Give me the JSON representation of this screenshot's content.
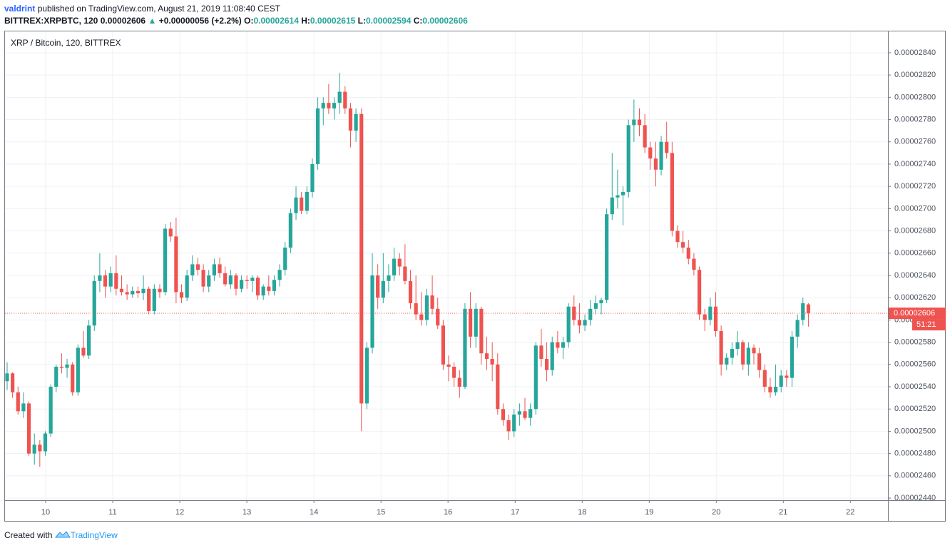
{
  "header": {
    "author": "valdrint",
    "published": "published on TradingView.com, August 21, 2019 11:08:40 CEST",
    "symbol": "BITTREX:XRPBTC, 120",
    "change": "+0.00000056 (+2.2%)",
    "o_label": "O:",
    "h_label": "H:",
    "l_label": "L:",
    "c_label": "C:"
  },
  "footer": {
    "text": "Created with",
    "brand": "TradingView"
  },
  "chart_data": {
    "type": "candlestick",
    "title": "XRP / Bitcoin, 120, BITTREX",
    "up_color": "#26a69a",
    "down_color": "#ef5350",
    "grid": true,
    "countdown": "51:21",
    "open": [
      2.545e-05,
      2.552e-05,
      2.535e-05,
      2.518e-05,
      2.525e-05,
      2.48e-05,
      2.488e-05,
      2.482e-05,
      2.498e-05,
      2.54e-05,
      2.558e-05,
      2.557e-05,
      2.56e-05,
      2.535e-05,
      2.575e-05,
      2.568e-05,
      2.595e-05,
      2.635e-05,
      2.64e-05,
      2.63e-05,
      2.642e-05,
      2.628e-05,
      2.625e-05,
      2.623e-05,
      2.626e-05,
      2.624e-05,
      2.628e-05,
      2.608e-05,
      2.628e-05,
      2.625e-05,
      2.682e-05,
      2.675e-05,
      2.625e-05,
      2.62e-05,
      2.64e-05,
      2.65e-05,
      2.645e-05,
      2.63e-05,
      2.64e-05,
      2.65e-05,
      2.642e-05,
      2.632e-05,
      2.64e-05,
      2.628e-05,
      2.636e-05,
      2.635e-05,
      2.638e-05,
      2.622e-05,
      2.63e-05,
      2.626e-05,
      2.636e-05,
      2.645e-05,
      2.665e-05,
      2.696e-05,
      2.71e-05,
      2.698e-05,
      2.715e-05,
      2.74e-05,
      2.79e-05,
      2.795e-05,
      2.79e-05,
      2.795e-05,
      2.805e-05,
      2.79e-05,
      2.77e-05,
      2.785e-05,
      2.525e-05,
      2.575e-05,
      2.64e-05,
      2.62e-05,
      2.635e-05,
      2.64e-05,
      2.655e-05,
      2.648e-05,
      2.635e-05,
      2.615e-05,
      2.605e-05,
      2.6e-05,
      2.622e-05,
      2.61e-05,
      2.595e-05,
      2.56e-05,
      2.558e-05,
      2.548e-05,
      2.54e-05,
      2.61e-05,
      2.585e-05,
      2.61e-05,
      2.57e-05,
      2.565e-05,
      2.56e-05,
      2.52e-05,
      2.51e-05,
      2.5e-05,
      2.515e-05,
      2.518e-05,
      2.512e-05,
      2.52e-05,
      2.577e-05,
      2.565e-05,
      2.555e-05,
      2.58e-05,
      2.575e-05,
      2.58e-05,
      2.612e-05,
      2.6e-05,
      2.595e-05,
      2.6e-05,
      2.61e-05,
      2.615e-05,
      2.618e-05,
      2.695e-05,
      2.71e-05,
      2.712e-05,
      2.715e-05,
      2.775e-05,
      2.78e-05,
      2.775e-05,
      2.755e-05,
      2.745e-05,
      2.735e-05,
      2.76e-05,
      2.75e-05,
      2.68e-05,
      2.67e-05,
      2.665e-05,
      2.655e-05,
      2.645e-05,
      2.605e-05,
      2.6e-05,
      2.612e-05,
      2.59e-05,
      2.56e-05,
      2.566e-05,
      2.574e-05,
      2.58e-05,
      2.56e-05,
      2.575e-05,
      2.57e-05,
      2.555e-05,
      2.54e-05,
      2.535e-05,
      2.54e-05,
      2.55e-05,
      2.548e-05,
      2.585e-05,
      2.6e-05,
      2.614e-05
    ],
    "high": [
      2.562e-05,
      2.553e-05,
      2.54e-05,
      2.535e-05,
      2.527e-05,
      2.498e-05,
      2.492e-05,
      2.5e-05,
      2.542e-05,
      2.56e-05,
      2.57e-05,
      2.565e-05,
      2.562e-05,
      2.578e-05,
      2.59e-05,
      2.6e-05,
      2.64e-05,
      2.66e-05,
      2.645e-05,
      2.648e-05,
      2.658e-05,
      2.64e-05,
      2.632e-05,
      2.63e-05,
      2.63e-05,
      2.64e-05,
      2.63e-05,
      2.632e-05,
      2.632e-05,
      2.686e-05,
      2.688e-05,
      2.692e-05,
      2.632e-05,
      2.645e-05,
      2.658e-05,
      2.656e-05,
      2.65e-05,
      2.645e-05,
      2.655e-05,
      2.656e-05,
      2.648e-05,
      2.645e-05,
      2.642e-05,
      2.64e-05,
      2.64e-05,
      2.64e-05,
      2.64e-05,
      2.632e-05,
      2.64e-05,
      2.64e-05,
      2.65e-05,
      2.67e-05,
      2.7e-05,
      2.72e-05,
      2.715e-05,
      2.72e-05,
      2.745e-05,
      2.8e-05,
      2.8e-05,
      2.812e-05,
      2.8e-05,
      2.822e-05,
      2.81e-05,
      2.795e-05,
      2.79e-05,
      2.79e-05,
      2.58e-05,
      2.66e-05,
      2.65e-05,
      2.66e-05,
      2.65e-05,
      2.665e-05,
      2.66e-05,
      2.668e-05,
      2.645e-05,
      2.64e-05,
      2.625e-05,
      2.628e-05,
      2.64e-05,
      2.62e-05,
      2.6e-05,
      2.568e-05,
      2.562e-05,
      2.555e-05,
      2.615e-05,
      2.625e-05,
      2.615e-05,
      2.612e-05,
      2.585e-05,
      2.58e-05,
      2.57e-05,
      2.525e-05,
      2.515e-05,
      2.52e-05,
      2.525e-05,
      2.53e-05,
      2.525e-05,
      2.58e-05,
      2.592e-05,
      2.58e-05,
      2.585e-05,
      2.59e-05,
      2.585e-05,
      2.615e-05,
      2.622e-05,
      2.615e-05,
      2.605e-05,
      2.618e-05,
      2.622e-05,
      2.62e-05,
      2.7e-05,
      2.75e-05,
      2.735e-05,
      2.72e-05,
      2.78e-05,
      2.798e-05,
      2.79e-05,
      2.785e-05,
      2.76e-05,
      2.76e-05,
      2.765e-05,
      2.778e-05,
      2.76e-05,
      2.685e-05,
      2.68e-05,
      2.672e-05,
      2.66e-05,
      2.648e-05,
      2.61e-05,
      2.62e-05,
      2.625e-05,
      2.595e-05,
      2.57e-05,
      2.58e-05,
      2.59e-05,
      2.582e-05,
      2.58e-05,
      2.578e-05,
      2.575e-05,
      2.56e-05,
      2.548e-05,
      2.56e-05,
      2.555e-05,
      2.555e-05,
      2.59e-05,
      2.605e-05,
      2.62e-05,
      2.615e-05
    ],
    "low": [
      2.537e-05,
      2.53e-05,
      2.515e-05,
      2.512e-05,
      2.478e-05,
      2.47e-05,
      2.468e-05,
      2.478e-05,
      2.495e-05,
      2.535e-05,
      2.552e-05,
      2.548e-05,
      2.532e-05,
      2.532e-05,
      2.566e-05,
      2.565e-05,
      2.59e-05,
      2.625e-05,
      2.62e-05,
      2.625e-05,
      2.622e-05,
      2.622e-05,
      2.618e-05,
      2.62e-05,
      2.62e-05,
      2.618e-05,
      2.605e-05,
      2.605e-05,
      2.62e-05,
      2.622e-05,
      2.67e-05,
      2.615e-05,
      2.615e-05,
      2.617e-05,
      2.635e-05,
      2.64e-05,
      2.625e-05,
      2.625e-05,
      2.635e-05,
      2.638e-05,
      2.63e-05,
      2.628e-05,
      2.622e-05,
      2.625e-05,
      2.628e-05,
      2.625e-05,
      2.618e-05,
      2.618e-05,
      2.622e-05,
      2.622e-05,
      2.63e-05,
      2.64e-05,
      2.66e-05,
      2.69e-05,
      2.695e-05,
      2.695e-05,
      2.71e-05,
      2.735e-05,
      2.775e-05,
      2.785e-05,
      2.78e-05,
      2.785e-05,
      2.785e-05,
      2.755e-05,
      2.76e-05,
      2.5e-05,
      2.52e-05,
      2.57e-05,
      2.61e-05,
      2.615e-05,
      2.625e-05,
      2.635e-05,
      2.64e-05,
      2.632e-05,
      2.61e-05,
      2.6e-05,
      2.595e-05,
      2.595e-05,
      2.605e-05,
      2.592e-05,
      2.555e-05,
      2.545e-05,
      2.54e-05,
      2.53e-05,
      2.538e-05,
      2.575e-05,
      2.575e-05,
      2.56e-05,
      2.555e-05,
      2.545e-05,
      2.515e-05,
      2.505e-05,
      2.492e-05,
      2.495e-05,
      2.505e-05,
      2.51e-05,
      2.505e-05,
      2.515e-05,
      2.558e-05,
      2.545e-05,
      2.55e-05,
      2.57e-05,
      2.565e-05,
      2.575e-05,
      2.595e-05,
      2.588e-05,
      2.59e-05,
      2.595e-05,
      2.605e-05,
      2.605e-05,
      2.615e-05,
      2.69e-05,
      2.7e-05,
      2.685e-05,
      2.71e-05,
      2.76e-05,
      2.765e-05,
      2.75e-05,
      2.735e-05,
      2.72e-05,
      2.73e-05,
      2.745e-05,
      2.675e-05,
      2.665e-05,
      2.66e-05,
      2.65e-05,
      2.64e-05,
      2.6e-05,
      2.59e-05,
      2.595e-05,
      2.585e-05,
      2.55e-05,
      2.555e-05,
      2.56e-05,
      2.568e-05,
      2.555e-05,
      2.55e-05,
      2.56e-05,
      2.548e-05,
      2.535e-05,
      2.53e-05,
      2.532e-05,
      2.535e-05,
      2.54e-05,
      2.54e-05,
      2.575e-05,
      2.595e-05,
      2.594e-05
    ],
    "close": [
      2.552e-05,
      2.535e-05,
      2.518e-05,
      2.525e-05,
      2.48e-05,
      2.488e-05,
      2.482e-05,
      2.498e-05,
      2.54e-05,
      2.558e-05,
      2.557e-05,
      2.56e-05,
      2.535e-05,
      2.575e-05,
      2.568e-05,
      2.595e-05,
      2.635e-05,
      2.64e-05,
      2.63e-05,
      2.642e-05,
      2.628e-05,
      2.625e-05,
      2.623e-05,
      2.626e-05,
      2.624e-05,
      2.628e-05,
      2.608e-05,
      2.628e-05,
      2.625e-05,
      2.682e-05,
      2.675e-05,
      2.625e-05,
      2.62e-05,
      2.64e-05,
      2.65e-05,
      2.645e-05,
      2.63e-05,
      2.64e-05,
      2.65e-05,
      2.642e-05,
      2.632e-05,
      2.64e-05,
      2.628e-05,
      2.636e-05,
      2.635e-05,
      2.638e-05,
      2.622e-05,
      2.63e-05,
      2.626e-05,
      2.636e-05,
      2.645e-05,
      2.665e-05,
      2.696e-05,
      2.71e-05,
      2.698e-05,
      2.715e-05,
      2.74e-05,
      2.79e-05,
      2.795e-05,
      2.79e-05,
      2.795e-05,
      2.805e-05,
      2.79e-05,
      2.77e-05,
      2.785e-05,
      2.525e-05,
      2.575e-05,
      2.64e-05,
      2.62e-05,
      2.635e-05,
      2.64e-05,
      2.655e-05,
      2.648e-05,
      2.635e-05,
      2.615e-05,
      2.605e-05,
      2.6e-05,
      2.622e-05,
      2.61e-05,
      2.595e-05,
      2.56e-05,
      2.558e-05,
      2.548e-05,
      2.54e-05,
      2.61e-05,
      2.585e-05,
      2.61e-05,
      2.57e-05,
      2.565e-05,
      2.56e-05,
      2.52e-05,
      2.51e-05,
      2.5e-05,
      2.515e-05,
      2.518e-05,
      2.512e-05,
      2.52e-05,
      2.577e-05,
      2.565e-05,
      2.555e-05,
      2.58e-05,
      2.575e-05,
      2.58e-05,
      2.612e-05,
      2.6e-05,
      2.595e-05,
      2.6e-05,
      2.61e-05,
      2.615e-05,
      2.618e-05,
      2.695e-05,
      2.71e-05,
      2.712e-05,
      2.715e-05,
      2.775e-05,
      2.78e-05,
      2.775e-05,
      2.755e-05,
      2.745e-05,
      2.735e-05,
      2.76e-05,
      2.75e-05,
      2.68e-05,
      2.67e-05,
      2.665e-05,
      2.655e-05,
      2.645e-05,
      2.605e-05,
      2.6e-05,
      2.612e-05,
      2.59e-05,
      2.56e-05,
      2.566e-05,
      2.574e-05,
      2.58e-05,
      2.56e-05,
      2.575e-05,
      2.57e-05,
      2.555e-05,
      2.54e-05,
      2.535e-05,
      2.54e-05,
      2.55e-05,
      2.548e-05,
      2.585e-05,
      2.6e-05,
      2.615e-05,
      2.606e-05
    ],
    "xlim": [
      -0.39,
      161.6
    ],
    "xticks": [
      {
        "value": 7.07,
        "label": "10"
      },
      {
        "value": 19.37,
        "label": "11"
      },
      {
        "value": 31.68,
        "label": "12"
      },
      {
        "value": 43.98,
        "label": "13"
      },
      {
        "value": 56.29,
        "label": "14"
      },
      {
        "value": 68.59,
        "label": "15"
      },
      {
        "value": 80.89,
        "label": "16"
      },
      {
        "value": 93.2,
        "label": "17"
      },
      {
        "value": 105.5,
        "label": "18"
      },
      {
        "value": 117.8,
        "label": "19"
      },
      {
        "value": 130.1,
        "label": "20"
      },
      {
        "value": 142.4,
        "label": "21"
      },
      {
        "value": 154.7,
        "label": "22"
      }
    ],
    "ylim": [
      2.4381e-05,
      2.8592e-05
    ],
    "yticks": [
      {
        "value": 2.44e-05,
        "label": "0.00002440"
      },
      {
        "value": 2.46e-05,
        "label": "0.00002460"
      },
      {
        "value": 2.48e-05,
        "label": "0.00002480"
      },
      {
        "value": 2.5e-05,
        "label": "0.00002500"
      },
      {
        "value": 2.52e-05,
        "label": "0.00002520"
      },
      {
        "value": 2.54e-05,
        "label": "0.00002540"
      },
      {
        "value": 2.56e-05,
        "label": "0.00002560"
      },
      {
        "value": 2.58e-05,
        "label": "0.00002580"
      },
      {
        "value": 2.6e-05,
        "label": "0.00002600"
      },
      {
        "value": 2.62e-05,
        "label": "0.00002620"
      },
      {
        "value": 2.64e-05,
        "label": "0.00002640"
      },
      {
        "value": 2.66e-05,
        "label": "0.00002660"
      },
      {
        "value": 2.68e-05,
        "label": "0.00002680"
      },
      {
        "value": 2.7e-05,
        "label": "0.00002700"
      },
      {
        "value": 2.72e-05,
        "label": "0.00002720"
      },
      {
        "value": 2.74e-05,
        "label": "0.00002740"
      },
      {
        "value": 2.76e-05,
        "label": "0.00002760"
      },
      {
        "value": 2.78e-05,
        "label": "0.00002780"
      },
      {
        "value": 2.8e-05,
        "label": "0.00002800"
      },
      {
        "value": 2.82e-05,
        "label": "0.00002820"
      },
      {
        "value": 2.84e-05,
        "label": "0.00002840"
      }
    ]
  }
}
